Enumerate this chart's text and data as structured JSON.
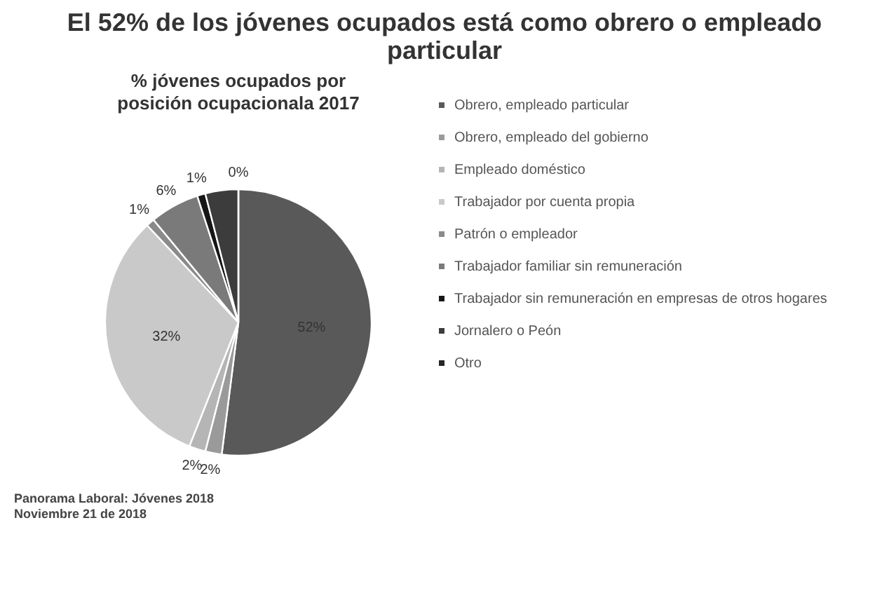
{
  "chart_data": {
    "type": "pie",
    "title": "El 52% de los jóvenes ocupados está como obrero o empleado particular",
    "subtitle": "% jóvenes ocupados por posición ocupacionala 2017",
    "categories": [
      "Obrero, empleado particular",
      "Obrero, empleado del gobierno",
      "Empleado doméstico",
      "Trabajador por cuenta propia",
      "Patrón o empleador",
      "Trabajador familiar sin remuneración",
      "Trabajador sin remuneración en empresas  de otros hogares",
      "Jornalero o Peón",
      "Otro"
    ],
    "values": [
      52,
      2,
      2,
      32,
      1,
      6,
      1,
      4,
      0
    ],
    "colors": [
      "#595959",
      "#9a9a9a",
      "#b5b5b5",
      "#c9c9c9",
      "#8a8a8a",
      "#7a7a7a",
      "#161616",
      "#3c3c3c",
      "#262626"
    ],
    "value_labels": [
      "52%",
      "2%",
      "2%",
      "32%",
      "1%",
      "6%",
      "1%",
      null,
      "0%"
    ],
    "legend": "right",
    "annotations": [
      "Panorama Laboral: Jóvenes 2018",
      "Noviembre 21 de 2018"
    ]
  }
}
